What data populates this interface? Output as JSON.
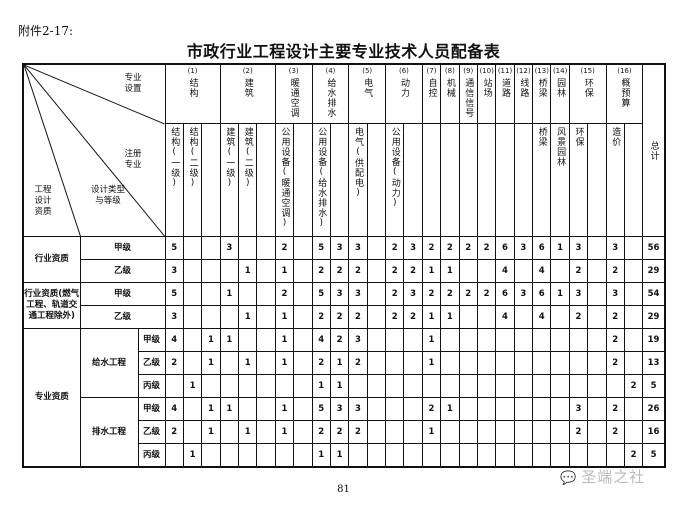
{
  "annex_label": "附件2-17:",
  "title": "市政行业工程设计主要专业技术人员配备表",
  "corner": {
    "major_setting": "专业设置",
    "registered_major": "注册专业",
    "qualification": "工程设计资质",
    "design_type_grade": "设计类型与等级"
  },
  "groups": [
    {
      "num": "(1)",
      "name": "结构",
      "subs": [
        "结构(一级)",
        "结构(二级)",
        ""
      ]
    },
    {
      "num": "(2)",
      "name": "建筑",
      "subs": [
        "建筑(一级)",
        "建筑(二级)",
        ""
      ]
    },
    {
      "num": "(3)",
      "name": "暖通空调",
      "subs": [
        "公用设备(暖通空调)",
        ""
      ]
    },
    {
      "num": "(4)",
      "name": "给水排水",
      "subs": [
        "公用设备(给水排水)",
        ""
      ]
    },
    {
      "num": "(5)",
      "name": "电气",
      "subs": [
        "电气(供配电)",
        ""
      ]
    },
    {
      "num": "(6)",
      "name": "动力",
      "subs": [
        "公用设备(动力)",
        ""
      ]
    },
    {
      "num": "(7)",
      "name": "自控",
      "subs": [
        ""
      ]
    },
    {
      "num": "(8)",
      "name": "机械",
      "subs": [
        ""
      ]
    },
    {
      "num": "(9)",
      "name": "通信信号",
      "subs": [
        ""
      ]
    },
    {
      "num": "(10)",
      "name": "站场",
      "subs": [
        ""
      ]
    },
    {
      "num": "(11)",
      "name": "道路",
      "subs": [
        ""
      ]
    },
    {
      "num": "(12)",
      "name": "线路",
      "subs": [
        ""
      ]
    },
    {
      "num": "(13)",
      "name": "桥梁",
      "subs": [
        "桥梁"
      ]
    },
    {
      "num": "(14)",
      "name": "园林",
      "subs": [
        "风景园林"
      ]
    },
    {
      "num": "(15)",
      "name": "环保",
      "subs": [
        "环保",
        ""
      ]
    },
    {
      "num": "(16)",
      "name": "概预算",
      "subs": [
        "造价",
        ""
      ]
    }
  ],
  "total_label": "总计",
  "row_groups": [
    {
      "label": "行业资质",
      "rows": [
        {
          "grade": "甲级",
          "values": [
            "5",
            "",
            "",
            "3",
            "",
            "",
            "2",
            "",
            "5",
            "3",
            "3",
            "",
            "2",
            "3",
            "2",
            "2",
            "2",
            "2",
            "6",
            "3",
            "6",
            "1",
            "3",
            "",
            "3",
            "",
            "56"
          ]
        },
        {
          "grade": "乙级",
          "values": [
            "3",
            "",
            "",
            "",
            "1",
            "",
            "1",
            "",
            "2",
            "2",
            "2",
            "",
            "2",
            "2",
            "1",
            "1",
            "",
            "",
            "4",
            "",
            "4",
            "",
            "2",
            "",
            "2",
            "",
            "29"
          ]
        }
      ]
    },
    {
      "label": "行业资质(燃气工程、轨道交通工程除外)",
      "rows": [
        {
          "grade": "甲级",
          "values": [
            "5",
            "",
            "",
            "1",
            "",
            "",
            "2",
            "",
            "5",
            "3",
            "3",
            "",
            "2",
            "3",
            "2",
            "2",
            "2",
            "2",
            "6",
            "3",
            "6",
            "1",
            "3",
            "",
            "3",
            "",
            "54"
          ]
        },
        {
          "grade": "乙级",
          "values": [
            "3",
            "",
            "",
            "",
            "1",
            "",
            "1",
            "",
            "2",
            "2",
            "2",
            "",
            "2",
            "2",
            "1",
            "1",
            "",
            "",
            "4",
            "",
            "4",
            "",
            "2",
            "",
            "2",
            "",
            "29"
          ]
        }
      ]
    },
    {
      "label": "专业资质",
      "types": [
        {
          "type": "给水工程",
          "rows": [
            {
              "grade": "甲级",
              "values": [
                "4",
                "",
                "1",
                "1",
                "",
                "",
                "1",
                "",
                "4",
                "2",
                "3",
                "",
                "",
                "",
                "1",
                "",
                "",
                "",
                "",
                "",
                "",
                "",
                "",
                "",
                "2",
                "",
                "19"
              ]
            },
            {
              "grade": "乙级",
              "values": [
                "2",
                "",
                "1",
                "",
                "1",
                "",
                "1",
                "",
                "2",
                "1",
                "2",
                "",
                "",
                "",
                "1",
                "",
                "",
                "",
                "",
                "",
                "",
                "",
                "",
                "",
                "2",
                "",
                "13"
              ]
            },
            {
              "grade": "丙级",
              "values": [
                "",
                "1",
                "",
                "",
                "",
                "",
                "",
                "",
                "1",
                "1",
                "",
                "",
                "",
                "",
                "",
                "",
                "",
                "",
                "",
                "",
                "",
                "",
                "",
                "",
                "",
                "2",
                "5"
              ]
            }
          ]
        },
        {
          "type": "排水工程",
          "rows": [
            {
              "grade": "甲级",
              "values": [
                "4",
                "",
                "1",
                "1",
                "",
                "",
                "1",
                "",
                "5",
                "3",
                "3",
                "",
                "",
                "",
                "2",
                "1",
                "",
                "",
                "",
                "",
                "",
                "",
                "3",
                "",
                "2",
                "",
                "26"
              ]
            },
            {
              "grade": "乙级",
              "values": [
                "2",
                "",
                "1",
                "",
                "1",
                "",
                "1",
                "",
                "2",
                "2",
                "2",
                "",
                "",
                "",
                "1",
                "",
                "",
                "",
                "",
                "",
                "",
                "",
                "2",
                "",
                "2",
                "",
                "16"
              ]
            },
            {
              "grade": "丙级",
              "values": [
                "",
                "1",
                "",
                "",
                "",
                "",
                "",
                "",
                "1",
                "1",
                "",
                "",
                "",
                "",
                "",
                "",
                "",
                "",
                "",
                "",
                "",
                "",
                "",
                "",
                "",
                "2",
                "5"
              ]
            }
          ]
        }
      ]
    }
  ],
  "page_number": "81",
  "watermark": "圣端之社"
}
